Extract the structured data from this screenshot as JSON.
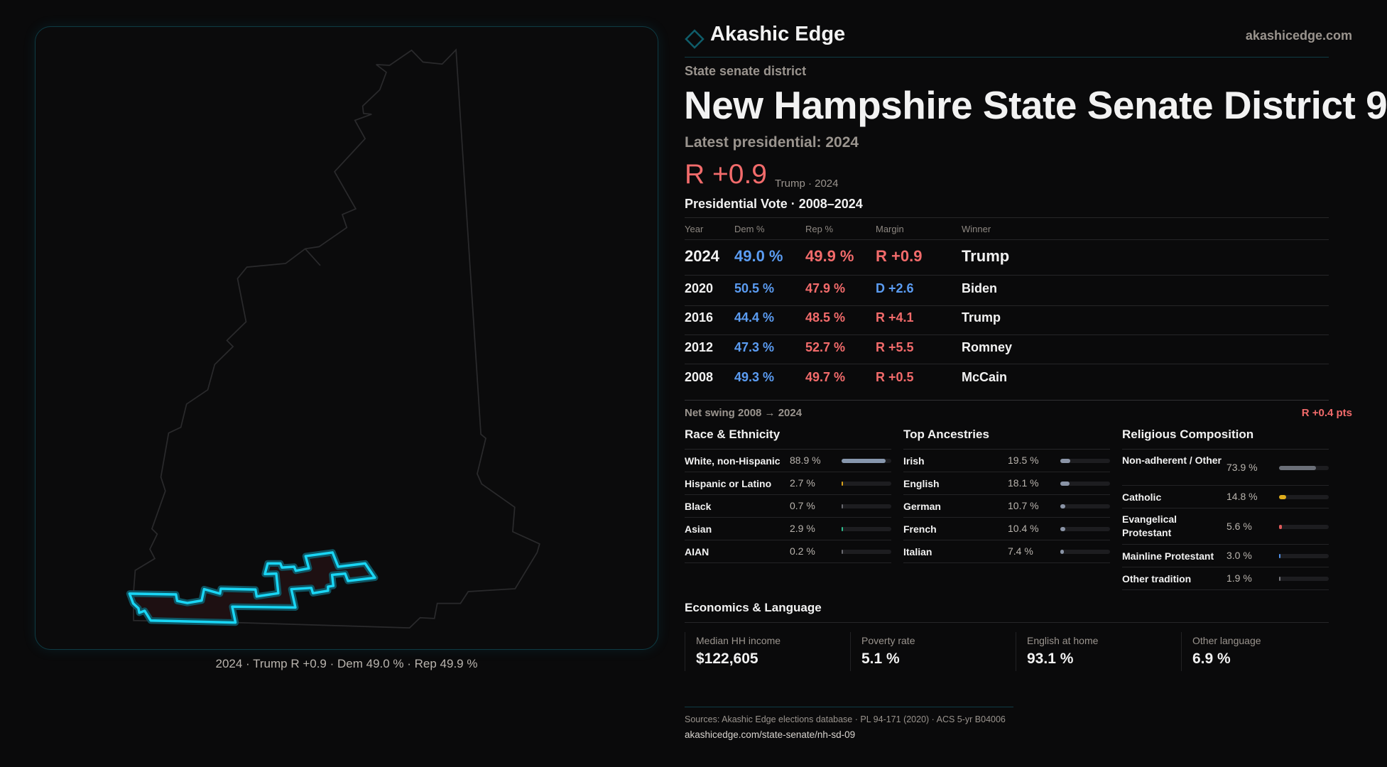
{
  "brand": {
    "name": "Akashic Edge",
    "site": "akashicedge.com",
    "accent": "#13c8e6"
  },
  "header": {
    "eyebrow": "State senate district",
    "title": "New Hampshire State Senate District 9",
    "latest_label": "Latest presidential: 2024",
    "margin": "R +0.9",
    "margin_note": "Trump · 2024"
  },
  "map": {
    "caption": "2024 · Trump R +0.9 · Dem 49.0 % · Rep 49.9 %",
    "highlight_color": "#19d6f5"
  },
  "votes": {
    "title": "Presidential Vote · 2008–2024",
    "headers": [
      "Year",
      "Dem %",
      "Rep %",
      "Margin",
      "Winner"
    ],
    "rows": [
      {
        "year": "2024",
        "dem": "49.0 %",
        "rep": "49.9 %",
        "margin": "R +0.9",
        "party": "R",
        "winner": "Trump"
      },
      {
        "year": "2020",
        "dem": "50.5 %",
        "rep": "47.9 %",
        "margin": "D +2.6",
        "party": "D",
        "winner": "Biden"
      },
      {
        "year": "2016",
        "dem": "44.4 %",
        "rep": "48.5 %",
        "margin": "R +4.1",
        "party": "R",
        "winner": "Trump"
      },
      {
        "year": "2012",
        "dem": "47.3 %",
        "rep": "52.7 %",
        "margin": "R +5.5",
        "party": "R",
        "winner": "Romney"
      },
      {
        "year": "2008",
        "dem": "49.3 %",
        "rep": "49.7 %",
        "margin": "R +0.5",
        "party": "R",
        "winner": "McCain"
      }
    ],
    "swing_label": "Net swing 2008 → 2024",
    "swing_value": "R +0.4 pts"
  },
  "race": {
    "title": "Race & Ethnicity",
    "items": [
      {
        "label": "White, non-Hispanic",
        "value": "88.9 %",
        "pct": 88.9,
        "color": "#8797ad"
      },
      {
        "label": "Hispanic or Latino",
        "value": "2.7 %",
        "pct": 2.7,
        "color": "#d9a21b"
      },
      {
        "label": "Black",
        "value": "0.7 %",
        "pct": 0.7,
        "color": "#6a6a70"
      },
      {
        "label": "Asian",
        "value": "2.9 %",
        "pct": 2.9,
        "color": "#2fbf8f"
      },
      {
        "label": "AIAN",
        "value": "0.2 %",
        "pct": 0.2,
        "color": "#6a6a70"
      }
    ]
  },
  "ancestry": {
    "title": "Top Ancestries",
    "items": [
      {
        "label": "Irish",
        "value": "19.5 %",
        "pct": 19.5,
        "color": "#8a94a6"
      },
      {
        "label": "English",
        "value": "18.1 %",
        "pct": 18.1,
        "color": "#8a94a6"
      },
      {
        "label": "German",
        "value": "10.7 %",
        "pct": 10.7,
        "color": "#8a94a6"
      },
      {
        "label": "French",
        "value": "10.4 %",
        "pct": 10.4,
        "color": "#8a94a6"
      },
      {
        "label": "Italian",
        "value": "7.4 %",
        "pct": 7.4,
        "color": "#8a94a6"
      }
    ]
  },
  "religion": {
    "title": "Religious Composition",
    "items": [
      {
        "label": "Non-adherent / Other",
        "value": "73.9 %",
        "pct": 73.9,
        "color": "#6b6f78"
      },
      {
        "label": "Catholic",
        "value": "14.8 %",
        "pct": 14.8,
        "color": "#e0ad1c"
      },
      {
        "label": "Evangelical Protestant",
        "value": "5.6 %",
        "pct": 5.6,
        "color": "#e05a5a"
      },
      {
        "label": "Mainline Protestant",
        "value": "3.0 %",
        "pct": 3.0,
        "color": "#4f8fe6"
      },
      {
        "label": "Other tradition",
        "value": "1.9 %",
        "pct": 1.9,
        "color": "#77777d"
      }
    ]
  },
  "economics": {
    "title": "Economics & Language",
    "cards": [
      {
        "label": "Median HH income",
        "value": "$122,605"
      },
      {
        "label": "Poverty rate",
        "value": "5.1 %"
      },
      {
        "label": "English at home",
        "value": "93.1 %"
      },
      {
        "label": "Other language",
        "value": "6.9 %"
      }
    ]
  },
  "footer": {
    "sources": "Sources: Akashic Edge elections database · PL 94-171 (2020) · ACS 5-yr B04006",
    "url": "akashicedge.com/state-senate/nh-sd-09"
  }
}
